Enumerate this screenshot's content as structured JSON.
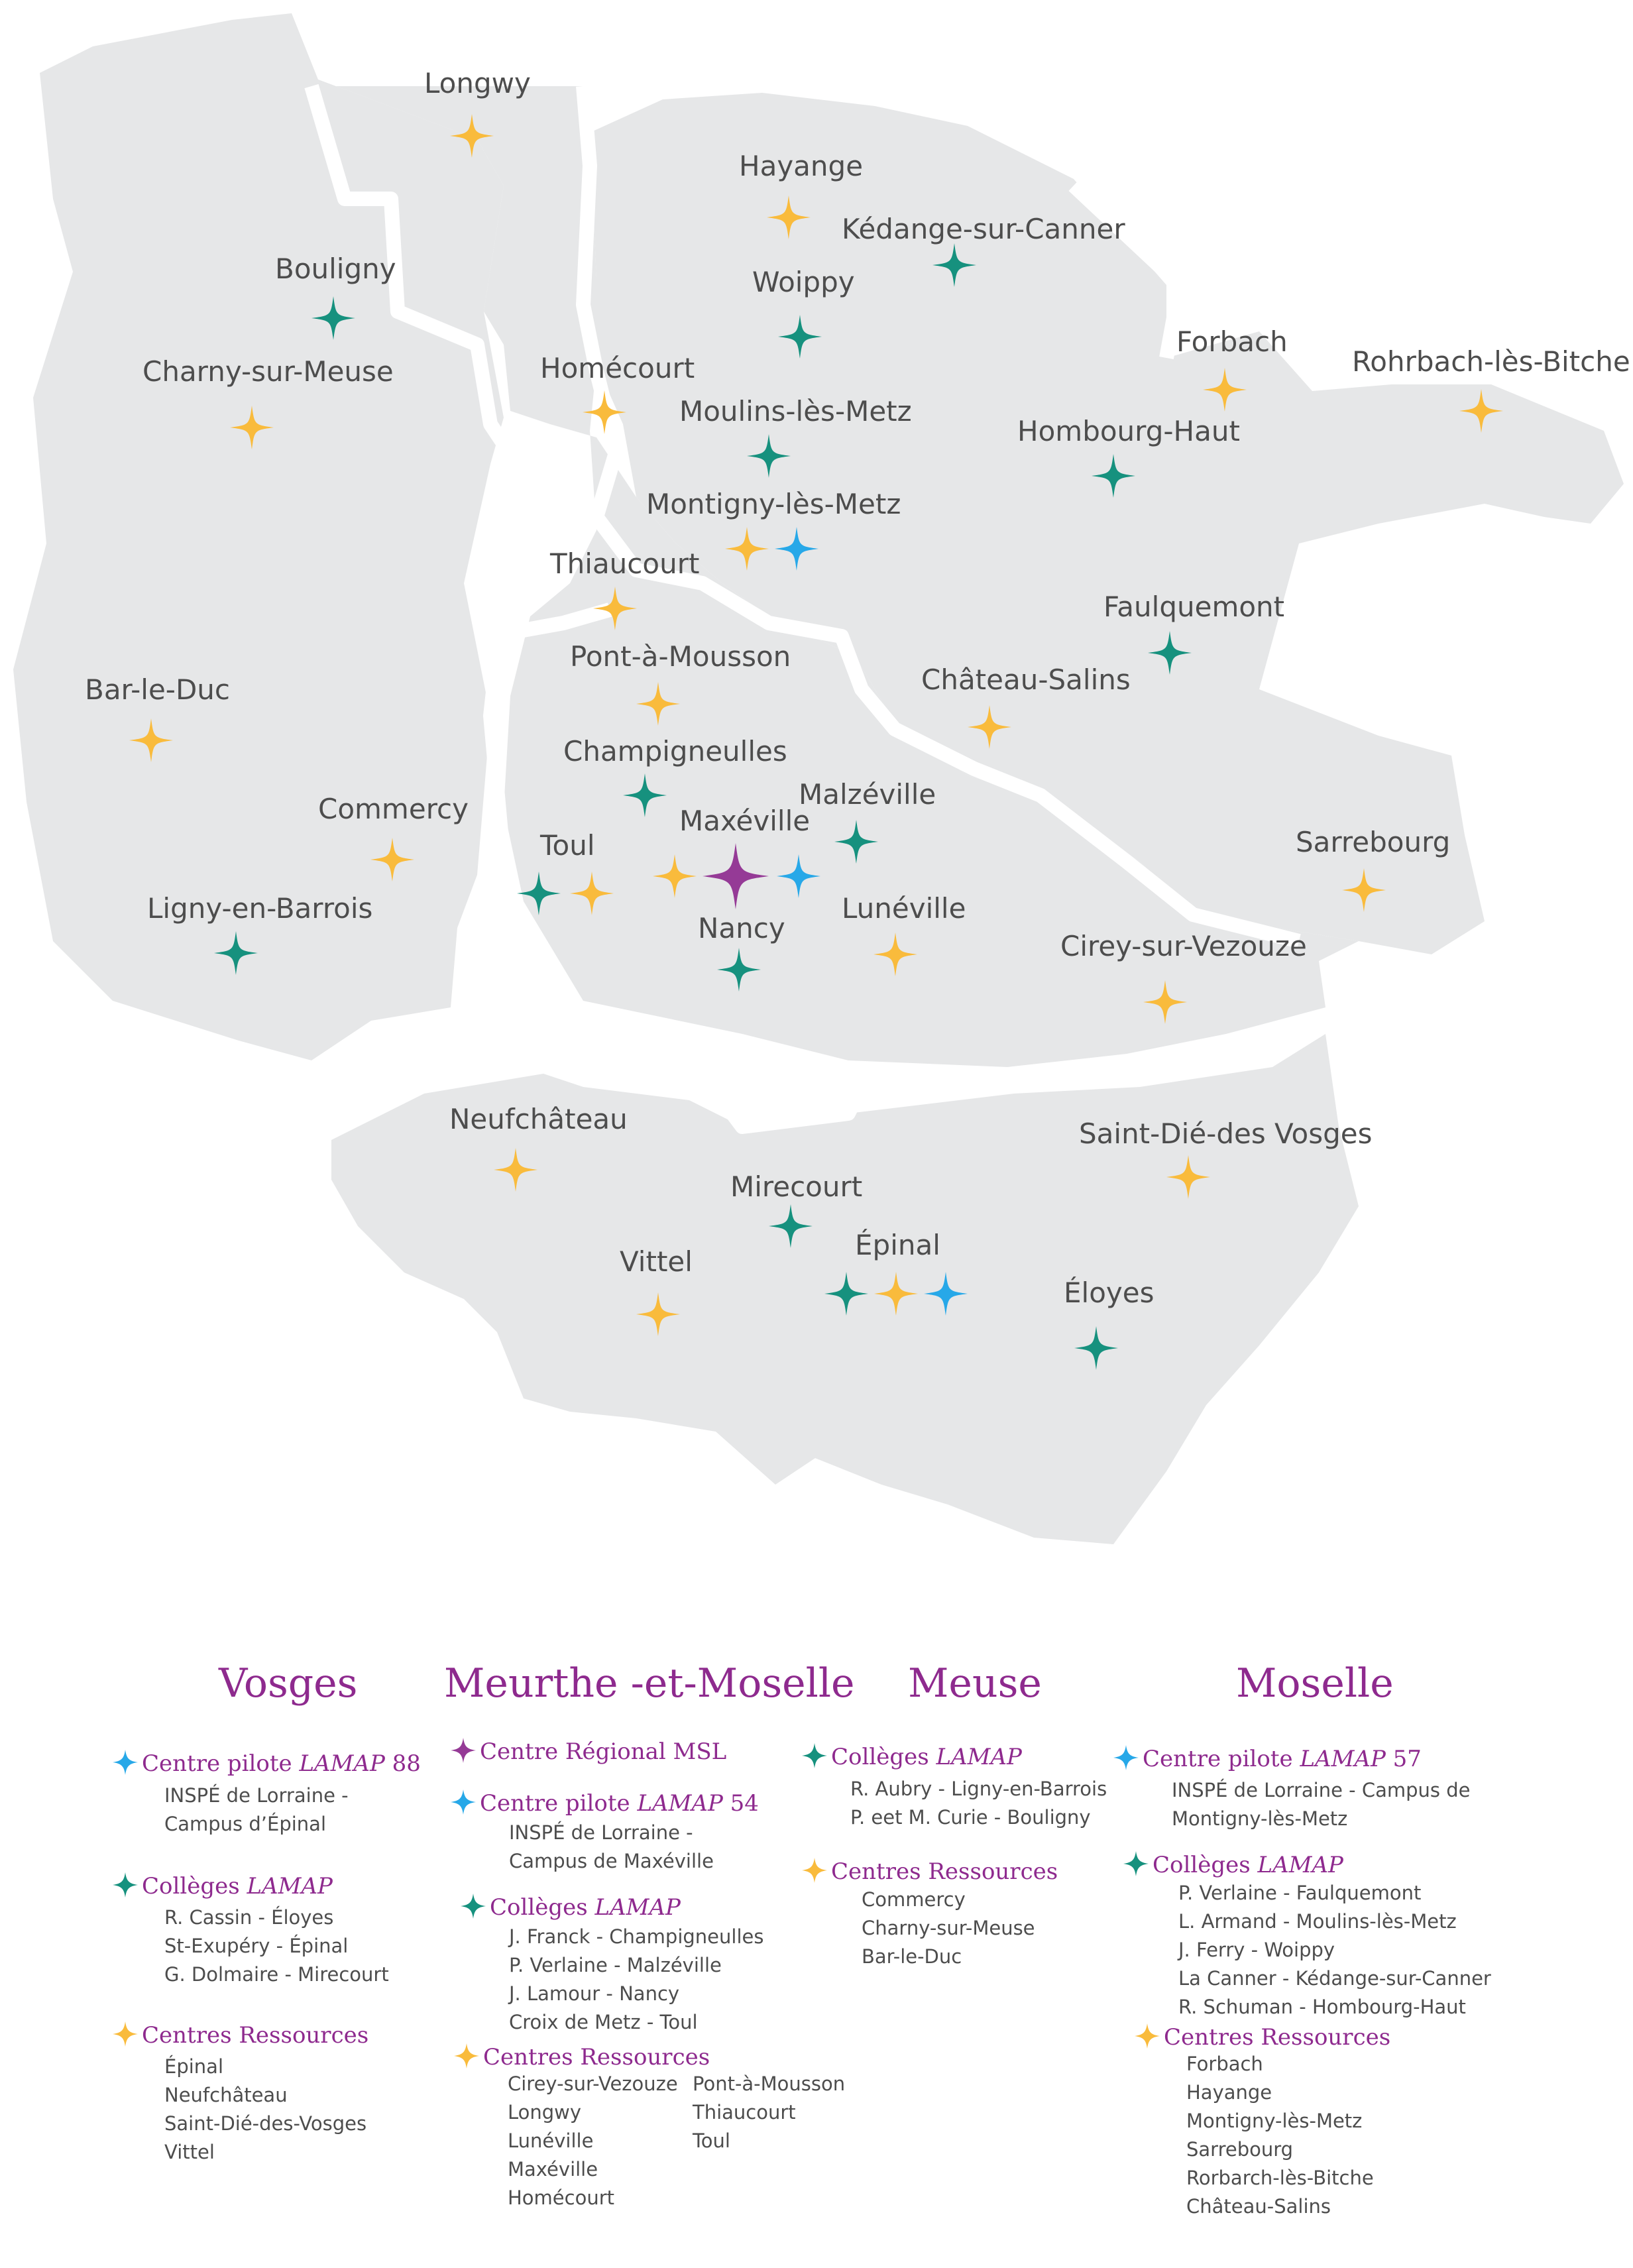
{
  "colors": {
    "teal": "#16917e",
    "yellow": "#f9bb3c",
    "blue": "#27a8e8",
    "purple": "#953a96",
    "land": "#e6e7e8",
    "title": "#8e2a8e"
  },
  "places": [
    {
      "name": "Longwy"
    },
    {
      "name": "Hayange"
    },
    {
      "name": "Kédange-sur-Canner"
    },
    {
      "name": "Bouligny"
    },
    {
      "name": "Woippy"
    },
    {
      "name": "Charny-sur-Meuse"
    },
    {
      "name": "Homécourt"
    },
    {
      "name": "Forbach"
    },
    {
      "name": "Rohrbach-lès-Bitche"
    },
    {
      "name": "Moulins-lès-Metz"
    },
    {
      "name": "Hombourg-Haut"
    },
    {
      "name": "Montigny-lès-Metz"
    },
    {
      "name": "Thiaucourt"
    },
    {
      "name": "Faulquemont"
    },
    {
      "name": "Pont-à-Mousson"
    },
    {
      "name": "Château-Salins"
    },
    {
      "name": "Bar-le-Duc"
    },
    {
      "name": "Champigneulles"
    },
    {
      "name": "Malzéville"
    },
    {
      "name": "Commercy"
    },
    {
      "name": "Maxéville"
    },
    {
      "name": "Toul"
    },
    {
      "name": "Sarrebourg"
    },
    {
      "name": "Ligny-en-Barrois"
    },
    {
      "name": "Lunéville"
    },
    {
      "name": "Nancy"
    },
    {
      "name": "Cirey-sur-Vezouze"
    },
    {
      "name": "Neufchâteau"
    },
    {
      "name": "Saint-Dié-des Vosges"
    },
    {
      "name": "Mirecourt"
    },
    {
      "name": "Épinal"
    },
    {
      "name": "Vittel"
    },
    {
      "name": "Éloyes"
    }
  ],
  "legend": {
    "vosges": {
      "title": "Vosges",
      "pilote": {
        "label": "Centre pilote ",
        "em": "LAMAP",
        "suffix": " 88",
        "lines": [
          "INSPÉ de Lorraine -",
          "Campus d’Épinal"
        ]
      },
      "colleges": {
        "label": "Collèges ",
        "em": "LAMAP",
        "lines": [
          "R. Cassin - Éloyes",
          "St-Exupéry - Épinal",
          "G. Dolmaire - Mirecourt"
        ]
      },
      "ressources": {
        "label": "Centres Ressources",
        "lines": [
          "Épinal",
          "Neufchâteau",
          "Saint-Dié-des-Vosges",
          "Vittel"
        ]
      }
    },
    "mm": {
      "title": "Meurthe -et-Moselle",
      "regional": {
        "label": "Centre Régional MSL"
      },
      "pilote": {
        "label": "Centre pilote ",
        "em": "LAMAP",
        "suffix": " 54",
        "lines": [
          "INSPÉ de Lorraine -",
          "Campus de Maxéville"
        ]
      },
      "colleges": {
        "label": "Collèges ",
        "em": "LAMAP",
        "lines": [
          "J. Franck - Champigneulles",
          "P. Verlaine - Malzéville",
          "J. Lamour - Nancy",
          "Croix de Metz - Toul"
        ]
      },
      "ressources": {
        "label": "Centres Ressources",
        "col1": [
          "Cirey-sur-Vezouze",
          "Longwy",
          "Lunéville",
          "Maxéville",
          "Homécourt"
        ],
        "col2": [
          "Pont-à-Mousson",
          "Thiaucourt",
          "Toul"
        ]
      }
    },
    "meuse": {
      "title": "Meuse",
      "colleges": {
        "label": "Collèges ",
        "em": "LAMAP",
        "lines": [
          "R. Aubry - Ligny-en-Barrois",
          "P. eet M. Curie - Bouligny"
        ]
      },
      "ressources": {
        "label": "Centres Ressources",
        "lines": [
          "Commercy",
          "Charny-sur-Meuse",
          "Bar-le-Duc"
        ]
      }
    },
    "moselle": {
      "title": "Moselle",
      "pilote": {
        "label": "Centre pilote ",
        "em": "LAMAP",
        "suffix": " 57",
        "lines": [
          "INSPÉ de Lorraine - Campus de",
          "Montigny-lès-Metz"
        ]
      },
      "colleges": {
        "label": "Collèges ",
        "em": "LAMAP",
        "lines": [
          "P. Verlaine - Faulquemont",
          "L. Armand - Moulins-lès-Metz",
          "J. Ferry - Woippy",
          "La Canner - Kédange-sur-Canner",
          "R. Schuman - Hombourg-Haut"
        ]
      },
      "ressources": {
        "label": "Centres Ressources",
        "lines": [
          "Forbach",
          "Hayange",
          "Montigny-lès-Metz",
          "Sarrebourg",
          "Rorbarch-lès-Bitche",
          "Château-Salins"
        ]
      }
    }
  }
}
